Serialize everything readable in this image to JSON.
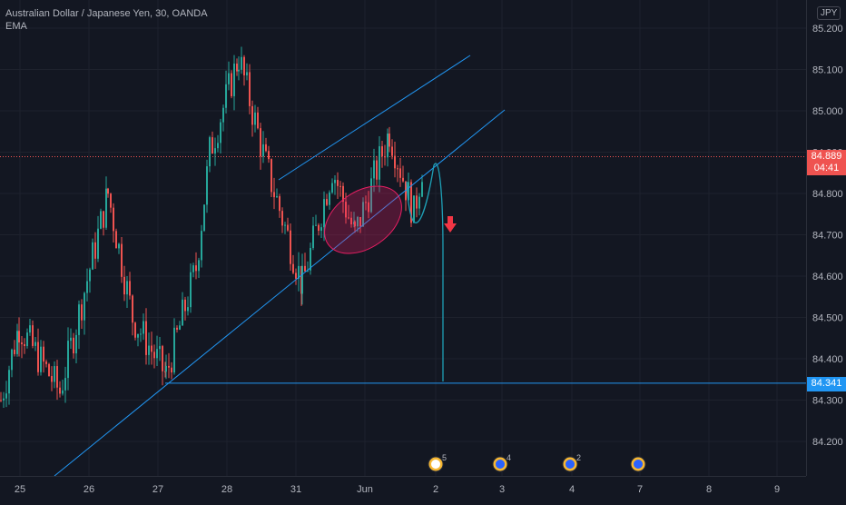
{
  "legend": {
    "title": "Australian Dollar / Japanese Yen, 30, OANDA",
    "indicator": "EMA"
  },
  "currency": "JPY",
  "last_price": {
    "value": "84.889",
    "countdown": "04:41",
    "color": "#ef5350"
  },
  "target_price": {
    "value": "84.341",
    "color": "#2196f3"
  },
  "colors": {
    "background": "#131722",
    "bull": "#26a69a",
    "bear": "#ef5350",
    "trendline": "#2196f3",
    "projection": "#1e9fb5",
    "ellipse_stroke": "#e91e63",
    "arrow": "#f23645"
  },
  "chart_data": {
    "type": "candlestick",
    "title": "Australian Dollar / Japanese Yen, 30, OANDA",
    "indicator": "EMA",
    "y_axis": {
      "ticks": [
        "85.200",
        "85.100",
        "85.000",
        "84.900",
        "84.800",
        "84.700",
        "84.600",
        "84.500",
        "84.400",
        "84.300",
        "84.200"
      ],
      "range": [
        84.11,
        85.26
      ]
    },
    "x_axis": {
      "ticks": [
        "25",
        "26",
        "27",
        "28",
        "31",
        "Jun",
        "2",
        "3",
        "4",
        "7",
        "8",
        "9"
      ]
    },
    "last_price": 84.889,
    "target_level": 84.341,
    "price_path": [
      {
        "x": "25",
        "y": 84.3
      },
      {
        "x": "25",
        "y": 84.48
      },
      {
        "x": "26",
        "y": 84.32
      },
      {
        "x": "26",
        "y": 84.8
      },
      {
        "x": "26",
        "y": 84.5
      },
      {
        "x": "27",
        "y": 84.36
      },
      {
        "x": "27",
        "y": 84.62
      },
      {
        "x": "28",
        "y": 84.9
      },
      {
        "x": "28",
        "y": 85.13
      },
      {
        "x": "28",
        "y": 84.87
      },
      {
        "x": "31",
        "y": 84.58
      },
      {
        "x": "31",
        "y": 84.86
      },
      {
        "x": "Jun",
        "y": 84.7
      },
      {
        "x": "Jun",
        "y": 84.95
      },
      {
        "x": "Jun",
        "y": 84.75
      },
      {
        "x": "Jun",
        "y": 84.89
      }
    ],
    "events": [
      {
        "x": "Jun",
        "count": "5"
      },
      {
        "x": "3",
        "count": "4"
      },
      {
        "x": "4",
        "count": "2"
      },
      {
        "x": "7",
        "count": ""
      }
    ]
  }
}
